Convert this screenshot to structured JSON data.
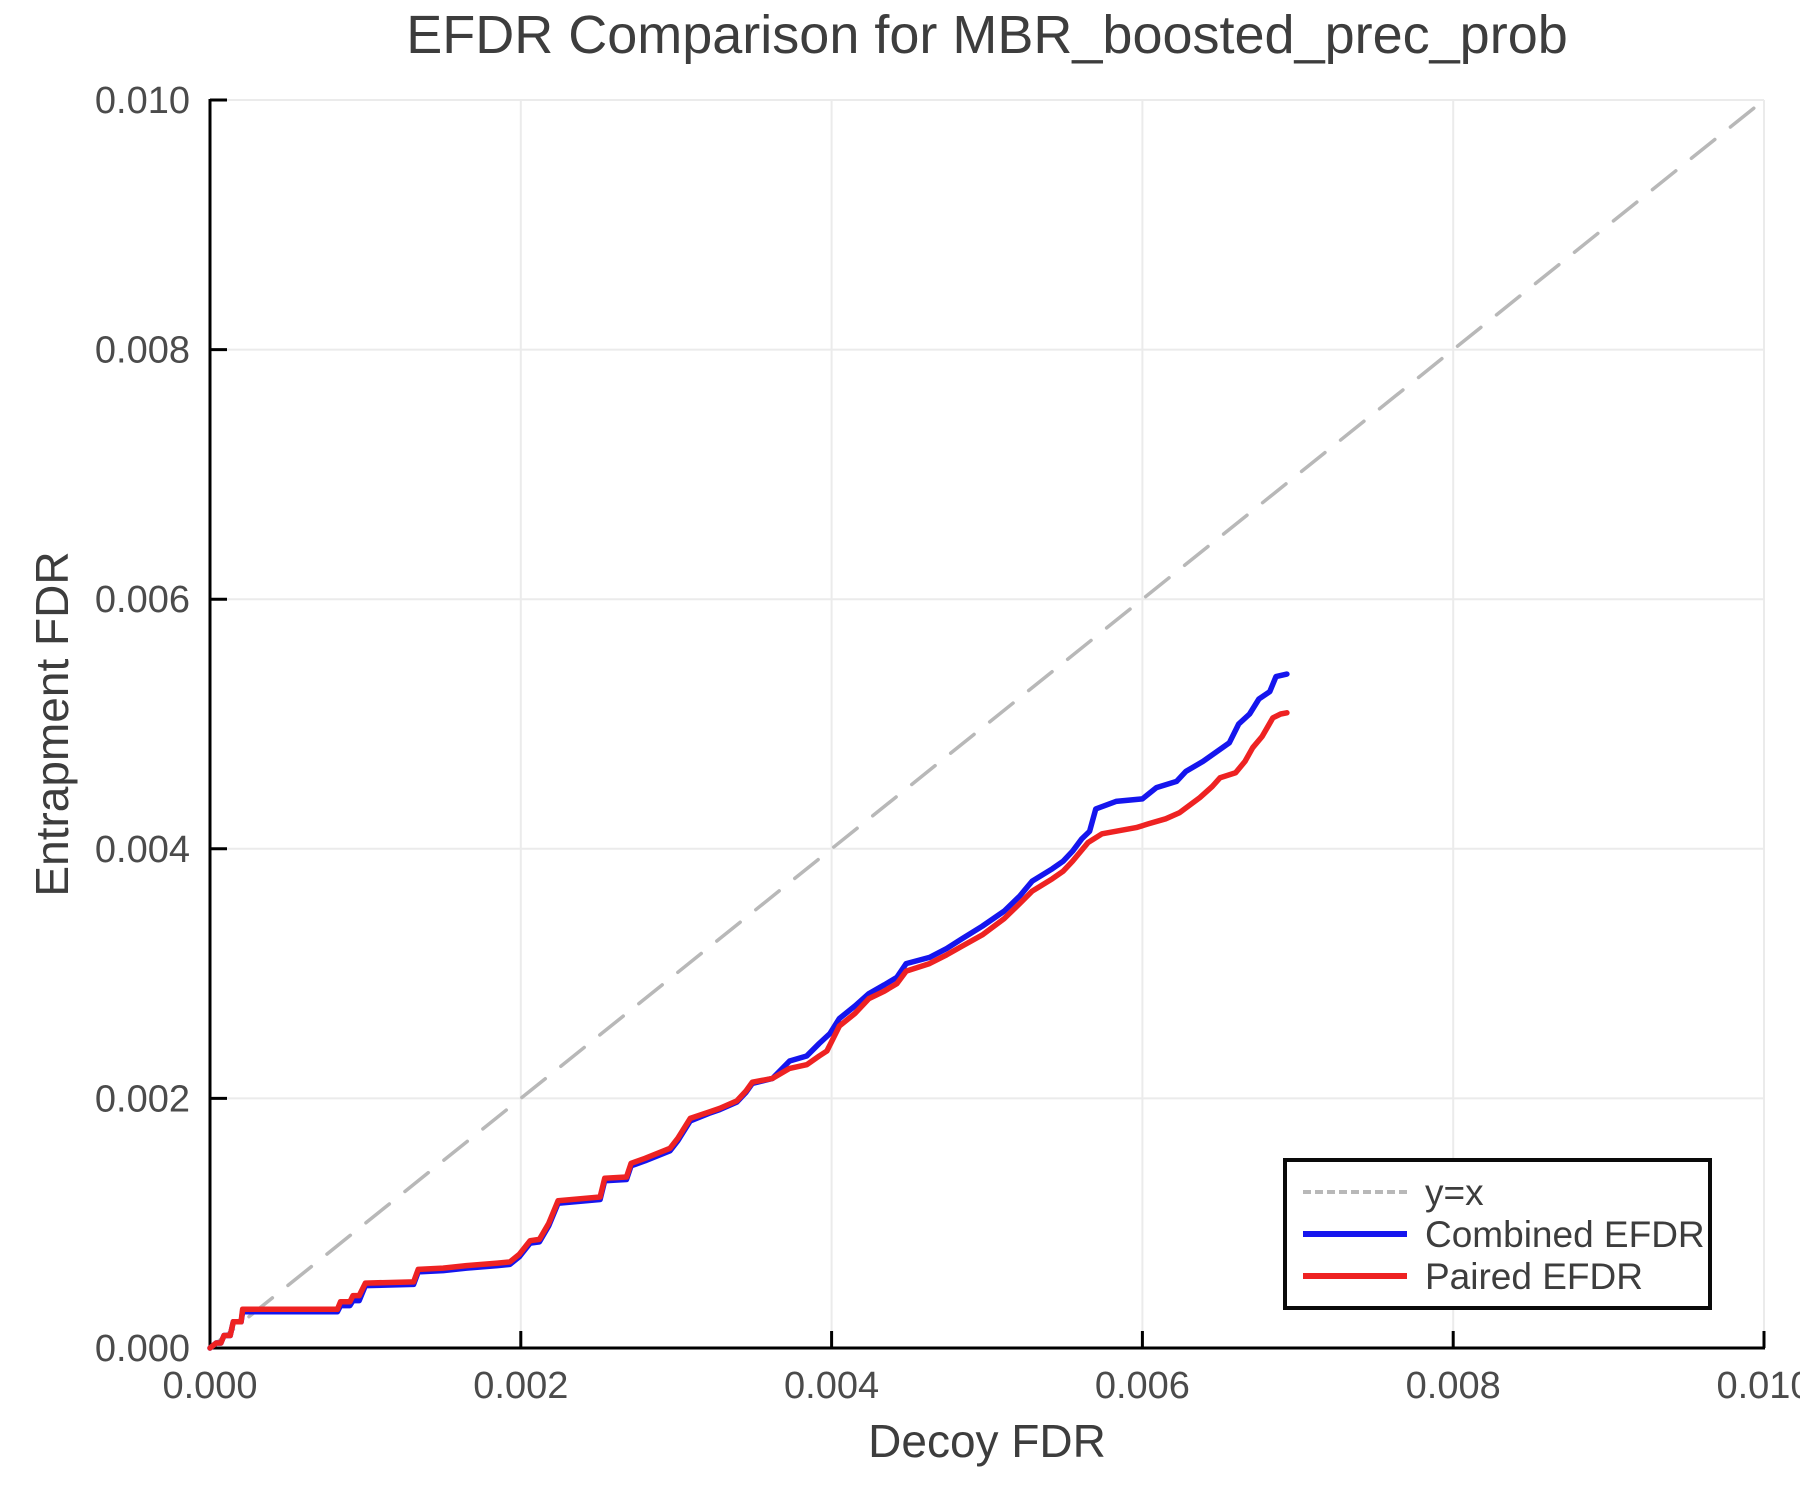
{
  "title": "EFDR Comparison for MBR_boosted_prec_prob",
  "chart_data": {
    "type": "line",
    "title": "EFDR Comparison for MBR_boosted_prec_prob",
    "xlabel": "Decoy FDR",
    "ylabel": "Entrapment FDR",
    "xlim": [
      0.0,
      0.01
    ],
    "ylim": [
      0.0,
      0.01
    ],
    "x_tick_values": [
      0.0,
      0.002,
      0.004,
      0.006,
      0.008,
      0.01
    ],
    "x_tick_labels": [
      "0.000",
      "0.002",
      "0.004",
      "0.006",
      "0.008",
      "0.010"
    ],
    "y_tick_values": [
      0.0,
      0.002,
      0.004,
      0.006,
      0.008,
      0.01
    ],
    "y_tick_labels": [
      "0.000",
      "0.002",
      "0.004",
      "0.006",
      "0.008",
      "0.010"
    ],
    "grid": true,
    "legend_position": "lower right",
    "colors": {
      "grid": "#ebebeb",
      "axis": "#000000",
      "title_text": "#3d3d3d",
      "tick_text": "#4b4b4b"
    },
    "series": [
      {
        "name": "y=x",
        "style": "dashed",
        "color": "#b8b8b8",
        "width": 3.5,
        "dash": "30 20",
        "points": [
          [
            0.0,
            0.0
          ],
          [
            0.01,
            0.01
          ]
        ]
      },
      {
        "name": "Combined EFDR",
        "style": "solid",
        "color": "#1515ee",
        "width": 5.5,
        "dash": null,
        "points": [
          [
            0.0,
            0.0
          ],
          [
            4e-05,
            4e-05
          ],
          [
            7e-05,
            4e-05
          ],
          [
            9e-05,
            0.0001
          ],
          [
            0.00013,
            0.0001
          ],
          [
            0.00015,
            0.00021
          ],
          [
            0.0002,
            0.00021
          ],
          [
            0.00021,
            0.00029
          ],
          [
            0.00082,
            0.00029
          ],
          [
            0.00084,
            0.00034
          ],
          [
            0.0009,
            0.00034
          ],
          [
            0.00092,
            0.00038
          ],
          [
            0.00096,
            0.00038
          ],
          [
            0.00098,
            0.00044
          ],
          [
            0.001,
            0.0005
          ],
          [
            0.00131,
            0.00051
          ],
          [
            0.00134,
            0.00061
          ],
          [
            0.0015,
            0.00062
          ],
          [
            0.00165,
            0.00064
          ],
          [
            0.00185,
            0.00066
          ],
          [
            0.00193,
            0.00067
          ],
          [
            0.00199,
            0.00073
          ],
          [
            0.00206,
            0.00084
          ],
          [
            0.00212,
            0.00085
          ],
          [
            0.00218,
            0.00098
          ],
          [
            0.00224,
            0.00116
          ],
          [
            0.00251,
            0.00119
          ],
          [
            0.00254,
            0.00134
          ],
          [
            0.00268,
            0.00135
          ],
          [
            0.00271,
            0.00146
          ],
          [
            0.0028,
            0.0015
          ],
          [
            0.00296,
            0.00158
          ],
          [
            0.00301,
            0.00166
          ],
          [
            0.00309,
            0.00182
          ],
          [
            0.00321,
            0.00188
          ],
          [
            0.00328,
            0.00191
          ],
          [
            0.00339,
            0.00197
          ],
          [
            0.00345,
            0.00205
          ],
          [
            0.00349,
            0.00212
          ],
          [
            0.00362,
            0.00216
          ],
          [
            0.00373,
            0.0023
          ],
          [
            0.00384,
            0.00234
          ],
          [
            0.00392,
            0.00244
          ],
          [
            0.00399,
            0.00252
          ],
          [
            0.00405,
            0.00264
          ],
          [
            0.00415,
            0.00274
          ],
          [
            0.00424,
            0.00284
          ],
          [
            0.00434,
            0.00291
          ],
          [
            0.00442,
            0.00297
          ],
          [
            0.00448,
            0.00308
          ],
          [
            0.00463,
            0.00313
          ],
          [
            0.00474,
            0.0032
          ],
          [
            0.00484,
            0.00328
          ],
          [
            0.00497,
            0.00338
          ],
          [
            0.00511,
            0.0035
          ],
          [
            0.00521,
            0.00362
          ],
          [
            0.00529,
            0.00374
          ],
          [
            0.00542,
            0.00384
          ],
          [
            0.00549,
            0.0039
          ],
          [
            0.00555,
            0.00398
          ],
          [
            0.00561,
            0.00408
          ],
          [
            0.00566,
            0.00414
          ],
          [
            0.0057,
            0.00432
          ],
          [
            0.00583,
            0.00438
          ],
          [
            0.006,
            0.0044
          ],
          [
            0.00609,
            0.00449
          ],
          [
            0.00622,
            0.00454
          ],
          [
            0.00628,
            0.00462
          ],
          [
            0.00639,
            0.0047
          ],
          [
            0.00648,
            0.00478
          ],
          [
            0.00656,
            0.00485
          ],
          [
            0.00662,
            0.005
          ],
          [
            0.00669,
            0.00508
          ],
          [
            0.00675,
            0.0052
          ],
          [
            0.00682,
            0.00526
          ],
          [
            0.00686,
            0.00538
          ],
          [
            0.00693,
            0.0054
          ]
        ]
      },
      {
        "name": "Paired EFDR",
        "style": "solid",
        "color": "#ee2222",
        "width": 5.5,
        "dash": null,
        "points": [
          [
            0.0,
            0.0
          ],
          [
            4e-05,
            4e-05
          ],
          [
            7e-05,
            4e-05
          ],
          [
            9e-05,
            0.0001
          ],
          [
            0.00013,
            0.0001
          ],
          [
            0.00015,
            0.00021
          ],
          [
            0.0002,
            0.00021
          ],
          [
            0.00021,
            0.00031
          ],
          [
            0.00082,
            0.00031
          ],
          [
            0.00084,
            0.00037
          ],
          [
            0.0009,
            0.00037
          ],
          [
            0.00092,
            0.00042
          ],
          [
            0.00096,
            0.00042
          ],
          [
            0.00098,
            0.00047
          ],
          [
            0.001,
            0.00052
          ],
          [
            0.00131,
            0.00053
          ],
          [
            0.00134,
            0.00063
          ],
          [
            0.0015,
            0.00064
          ],
          [
            0.00165,
            0.00066
          ],
          [
            0.00185,
            0.00068
          ],
          [
            0.00193,
            0.00069
          ],
          [
            0.00199,
            0.00075
          ],
          [
            0.00206,
            0.00086
          ],
          [
            0.00212,
            0.00087
          ],
          [
            0.00218,
            0.001
          ],
          [
            0.00224,
            0.00118
          ],
          [
            0.00251,
            0.00121
          ],
          [
            0.00254,
            0.00136
          ],
          [
            0.00268,
            0.00137
          ],
          [
            0.00271,
            0.00148
          ],
          [
            0.0028,
            0.00152
          ],
          [
            0.00296,
            0.0016
          ],
          [
            0.00301,
            0.00168
          ],
          [
            0.00309,
            0.00184
          ],
          [
            0.00321,
            0.00189
          ],
          [
            0.00328,
            0.00192
          ],
          [
            0.00339,
            0.00198
          ],
          [
            0.00345,
            0.00206
          ],
          [
            0.00349,
            0.00213
          ],
          [
            0.00362,
            0.00216
          ],
          [
            0.00373,
            0.00224
          ],
          [
            0.00384,
            0.00227
          ],
          [
            0.00392,
            0.00234
          ],
          [
            0.00397,
            0.00238
          ],
          [
            0.00405,
            0.00258
          ],
          [
            0.00415,
            0.00268
          ],
          [
            0.00424,
            0.0028
          ],
          [
            0.00434,
            0.00286
          ],
          [
            0.00442,
            0.00292
          ],
          [
            0.00448,
            0.00302
          ],
          [
            0.00463,
            0.00308
          ],
          [
            0.00474,
            0.00315
          ],
          [
            0.00484,
            0.00322
          ],
          [
            0.00497,
            0.00331
          ],
          [
            0.00511,
            0.00344
          ],
          [
            0.00521,
            0.00356
          ],
          [
            0.00529,
            0.00366
          ],
          [
            0.00542,
            0.00376
          ],
          [
            0.00549,
            0.00382
          ],
          [
            0.00555,
            0.0039
          ],
          [
            0.00565,
            0.00405
          ],
          [
            0.00574,
            0.00412
          ],
          [
            0.00596,
            0.00417
          ],
          [
            0.00604,
            0.0042
          ],
          [
            0.00615,
            0.00424
          ],
          [
            0.00624,
            0.00429
          ],
          [
            0.00637,
            0.00441
          ],
          [
            0.00645,
            0.0045
          ],
          [
            0.0065,
            0.00457
          ],
          [
            0.0066,
            0.00461
          ],
          [
            0.00666,
            0.0047
          ],
          [
            0.00671,
            0.00481
          ],
          [
            0.00677,
            0.0049
          ],
          [
            0.00684,
            0.00505
          ],
          [
            0.00689,
            0.00508
          ],
          [
            0.00693,
            0.00509
          ]
        ]
      }
    ]
  },
  "legend": {
    "items": [
      {
        "label": "y=x"
      },
      {
        "label": "Combined EFDR"
      },
      {
        "label": "Paired EFDR"
      }
    ]
  }
}
